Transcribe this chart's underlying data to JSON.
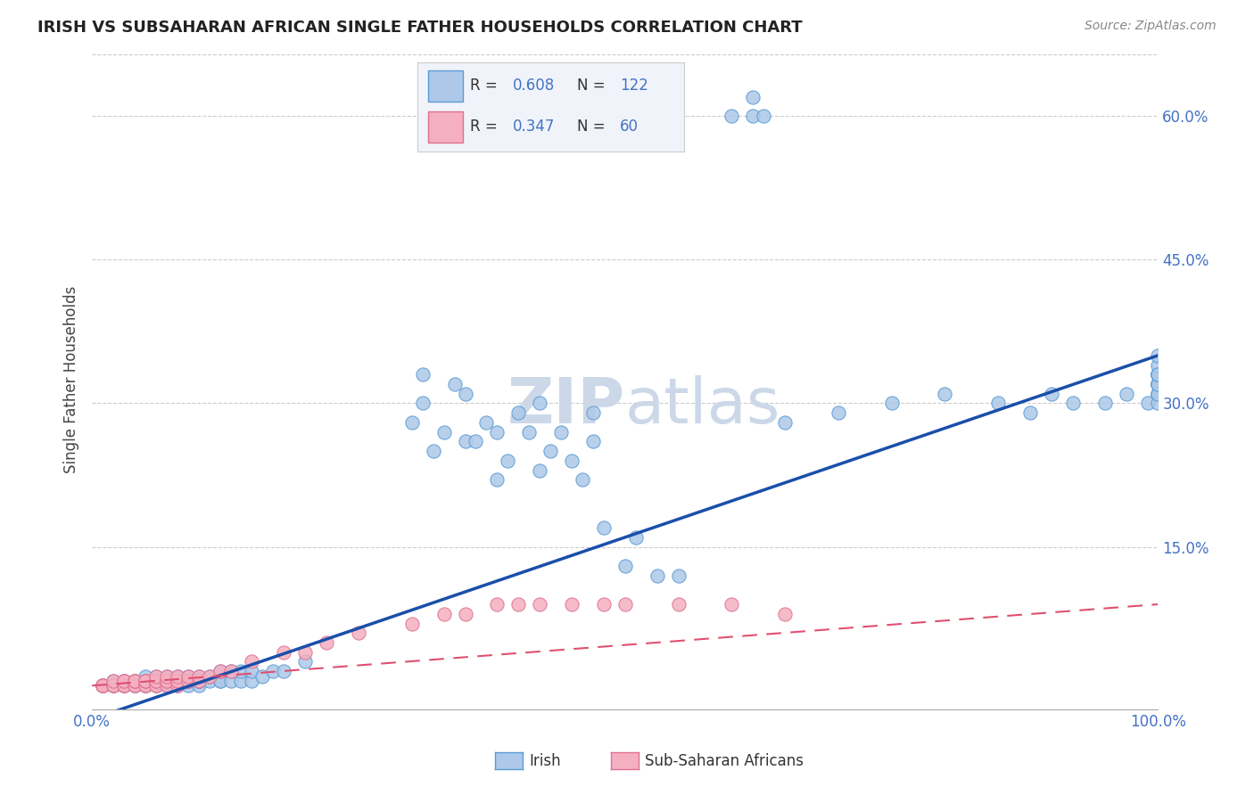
{
  "title": "IRISH VS SUBSAHARAN AFRICAN SINGLE FATHER HOUSEHOLDS CORRELATION CHART",
  "source": "Source: ZipAtlas.com",
  "ylabel": "Single Father Households",
  "irish_color": "#adc8e8",
  "irish_edge_color": "#5b9bd5",
  "subsaharan_color": "#f4b0c0",
  "subsaharan_edge_color": "#e07090",
  "irish_line_color": "#1a4faa",
  "subsaharan_line_color": "#e05070",
  "irish_R": "0.608",
  "irish_N": "122",
  "subsaharan_R": "0.347",
  "subsaharan_N": "60",
  "watermark_color": "#ccd8e8",
  "background_color": "#ffffff",
  "grid_color": "#cccccc",
  "tick_label_color": "#4472c4",
  "legend_bg": "#f0f4fa",
  "legend_border": "#cccccc",
  "irish_points_x": [
    0.01,
    0.01,
    0.01,
    0.02,
    0.02,
    0.02,
    0.02,
    0.03,
    0.03,
    0.03,
    0.03,
    0.03,
    0.04,
    0.04,
    0.04,
    0.04,
    0.04,
    0.05,
    0.05,
    0.05,
    0.05,
    0.05,
    0.05,
    0.06,
    0.06,
    0.06,
    0.06,
    0.06,
    0.07,
    0.07,
    0.07,
    0.07,
    0.07,
    0.07,
    0.08,
    0.08,
    0.08,
    0.08,
    0.08,
    0.09,
    0.09,
    0.09,
    0.09,
    0.1,
    0.1,
    0.1,
    0.1,
    0.1,
    0.11,
    0.11,
    0.12,
    0.12,
    0.12,
    0.13,
    0.13,
    0.14,
    0.14,
    0.15,
    0.15,
    0.16,
    0.17,
    0.18,
    0.2,
    0.3,
    0.31,
    0.31,
    0.32,
    0.33,
    0.34,
    0.35,
    0.35,
    0.36,
    0.37,
    0.38,
    0.38,
    0.39,
    0.4,
    0.41,
    0.42,
    0.42,
    0.43,
    0.44,
    0.45,
    0.46,
    0.47,
    0.47,
    0.48,
    0.5,
    0.51,
    0.53,
    0.55,
    0.6,
    0.62,
    0.62,
    0.63,
    0.65,
    0.7,
    0.75,
    0.8,
    0.85,
    0.88,
    0.9,
    0.92,
    0.95,
    0.97,
    0.99,
    1.0,
    1.0,
    1.0,
    1.0,
    1.0,
    1.0,
    1.0,
    1.0,
    1.0,
    1.0,
    1.0,
    1.0,
    1.0,
    1.0,
    1.0,
    1.0
  ],
  "irish_points_y": [
    0.005,
    0.005,
    0.005,
    0.005,
    0.005,
    0.005,
    0.01,
    0.005,
    0.005,
    0.005,
    0.01,
    0.01,
    0.005,
    0.005,
    0.005,
    0.01,
    0.01,
    0.005,
    0.005,
    0.005,
    0.01,
    0.01,
    0.015,
    0.005,
    0.005,
    0.01,
    0.01,
    0.015,
    0.005,
    0.005,
    0.01,
    0.01,
    0.01,
    0.015,
    0.005,
    0.005,
    0.01,
    0.01,
    0.015,
    0.005,
    0.01,
    0.01,
    0.015,
    0.005,
    0.01,
    0.01,
    0.01,
    0.015,
    0.01,
    0.015,
    0.01,
    0.01,
    0.02,
    0.01,
    0.02,
    0.01,
    0.02,
    0.01,
    0.02,
    0.015,
    0.02,
    0.02,
    0.03,
    0.28,
    0.3,
    0.33,
    0.25,
    0.27,
    0.32,
    0.26,
    0.31,
    0.26,
    0.28,
    0.22,
    0.27,
    0.24,
    0.29,
    0.27,
    0.23,
    0.3,
    0.25,
    0.27,
    0.24,
    0.22,
    0.26,
    0.29,
    0.17,
    0.13,
    0.16,
    0.12,
    0.12,
    0.6,
    0.6,
    0.62,
    0.6,
    0.28,
    0.29,
    0.3,
    0.31,
    0.3,
    0.29,
    0.31,
    0.3,
    0.3,
    0.31,
    0.3,
    0.32,
    0.31,
    0.33,
    0.32,
    0.31,
    0.32,
    0.33,
    0.32,
    0.3,
    0.33,
    0.31,
    0.32,
    0.33,
    0.34,
    0.33,
    0.35
  ],
  "subsaharan_points_x": [
    0.01,
    0.01,
    0.01,
    0.01,
    0.02,
    0.02,
    0.02,
    0.02,
    0.03,
    0.03,
    0.03,
    0.03,
    0.03,
    0.04,
    0.04,
    0.04,
    0.04,
    0.04,
    0.05,
    0.05,
    0.05,
    0.05,
    0.05,
    0.06,
    0.06,
    0.06,
    0.06,
    0.06,
    0.07,
    0.07,
    0.07,
    0.07,
    0.08,
    0.08,
    0.08,
    0.08,
    0.09,
    0.09,
    0.1,
    0.1,
    0.11,
    0.12,
    0.13,
    0.15,
    0.18,
    0.2,
    0.22,
    0.25,
    0.3,
    0.33,
    0.35,
    0.38,
    0.4,
    0.42,
    0.45,
    0.48,
    0.5,
    0.55,
    0.6,
    0.65
  ],
  "subsaharan_points_y": [
    0.005,
    0.005,
    0.005,
    0.005,
    0.005,
    0.005,
    0.005,
    0.01,
    0.005,
    0.005,
    0.005,
    0.01,
    0.01,
    0.005,
    0.005,
    0.01,
    0.01,
    0.01,
    0.005,
    0.005,
    0.01,
    0.01,
    0.01,
    0.005,
    0.005,
    0.01,
    0.01,
    0.015,
    0.005,
    0.01,
    0.01,
    0.015,
    0.005,
    0.01,
    0.01,
    0.015,
    0.01,
    0.015,
    0.01,
    0.015,
    0.015,
    0.02,
    0.02,
    0.03,
    0.04,
    0.04,
    0.05,
    0.06,
    0.07,
    0.08,
    0.08,
    0.09,
    0.09,
    0.09,
    0.09,
    0.09,
    0.09,
    0.09,
    0.09,
    0.08
  ],
  "irish_line_x0": 0.0,
  "irish_line_y0": -0.03,
  "irish_line_x1": 1.0,
  "irish_line_y1": 0.35,
  "sub_line_x0": 0.0,
  "sub_line_y0": 0.005,
  "sub_line_x1": 1.0,
  "sub_line_y1": 0.09,
  "ylim_min": -0.02,
  "ylim_max": 0.67,
  "xlim_min": 0.0,
  "xlim_max": 1.0,
  "ytick_vals": [
    0.0,
    0.15,
    0.3,
    0.45,
    0.6
  ],
  "ytick_labels": [
    "",
    "15.0%",
    "30.0%",
    "45.0%",
    "60.0%"
  ]
}
